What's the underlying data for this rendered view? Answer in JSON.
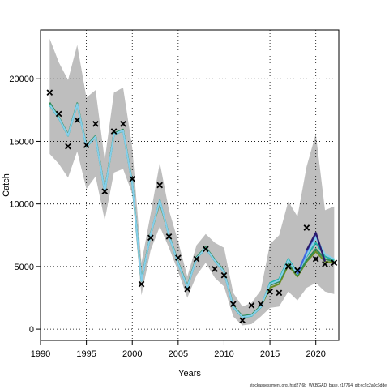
{
  "footer_text": "stockassessment.org, hsd27.6b_WKBGAD_base, r17764, git:ec2c2a0c6dde",
  "chart_data": {
    "type": "line",
    "title": "",
    "xlabel": "Years",
    "ylabel": "Catch",
    "xlim": [
      1990,
      2022.5
    ],
    "ylim": [
      -900,
      23900
    ],
    "xticks": [
      1990,
      1995,
      2000,
      2005,
      2010,
      2015,
      2020
    ],
    "yticks": [
      0,
      5000,
      10000,
      15000,
      20000
    ],
    "grid": true,
    "ci_band": {
      "color": "#bebebe",
      "x": [
        1991,
        1992,
        1993,
        1994,
        1995,
        1996,
        1997,
        1998,
        1999,
        2000,
        2001,
        2002,
        2003,
        2004,
        2005,
        2006,
        2007,
        2008,
        2009,
        2010,
        2011,
        2012,
        2013,
        2014,
        2015,
        2016,
        2017,
        2018,
        2019,
        2020,
        2021,
        2022
      ],
      "upper": [
        23200,
        21300,
        19900,
        22700,
        18500,
        19100,
        13500,
        18900,
        19300,
        14500,
        5300,
        9200,
        13300,
        9500,
        7000,
        4200,
        6700,
        7600,
        6900,
        6500,
        2900,
        1800,
        2100,
        3100,
        6800,
        7500,
        10200,
        9000,
        13000,
        15600,
        9500,
        9800
      ],
      "lower": [
        14000,
        13200,
        12100,
        14200,
        11200,
        12200,
        8700,
        12500,
        12800,
        10800,
        2700,
        6300,
        8200,
        6500,
        4600,
        2500,
        4300,
        5300,
        4100,
        3400,
        1000,
        300,
        400,
        1000,
        1700,
        1800,
        3000,
        2300,
        3300,
        3700,
        3000,
        2800
      ]
    },
    "series": [
      {
        "color": "#6b8e23",
        "x": [
          1991,
          1992,
          1993,
          1994,
          1995,
          1996,
          1997,
          1998,
          1999,
          2000,
          2001,
          2002,
          2003,
          2004,
          2005,
          2006,
          2007,
          2008,
          2009,
          2010,
          2011,
          2012,
          2013,
          2014,
          2015,
          2016,
          2017,
          2018,
          2019,
          2020,
          2021,
          2022
        ],
        "values": [
          18000,
          16900,
          15500,
          18000,
          14600,
          15400,
          11000,
          15600,
          15900,
          11700,
          3900,
          7600,
          10100,
          7500,
          5300,
          3400,
          5700,
          6500,
          5500,
          4600,
          1800,
          1000,
          1100,
          1800,
          3300,
          3600,
          5100,
          4200,
          5400,
          6200,
          5400,
          5300
        ]
      },
      {
        "color": "#2e8b57",
        "x": [
          1991,
          1992,
          1993,
          1994,
          1995,
          1996,
          1997,
          1998,
          1999,
          2000,
          2001,
          2002,
          2003,
          2004,
          2005,
          2006,
          2007,
          2008,
          2009,
          2010,
          2011,
          2012,
          2013,
          2014,
          2015,
          2016,
          2017,
          2018,
          2019,
          2020,
          2021,
          2022
        ],
        "values": [
          18100,
          16950,
          15550,
          18050,
          14650,
          15450,
          11050,
          15650,
          15950,
          11750,
          3950,
          7650,
          10150,
          7550,
          5350,
          3450,
          5750,
          6550,
          5550,
          4650,
          1850,
          1050,
          1150,
          1850,
          3500,
          3800,
          5300,
          4300,
          5500,
          6400,
          5600,
          5400
        ]
      },
      {
        "color": "#20b2aa",
        "x": [
          1991,
          1992,
          1993,
          1994,
          1995,
          1996,
          1997,
          1998,
          1999,
          2000,
          2001,
          2002,
          2003,
          2004,
          2005,
          2006,
          2007,
          2008,
          2009,
          2010,
          2011,
          2012,
          2013,
          2014,
          2015,
          2016,
          2017,
          2018,
          2019,
          2020,
          2021,
          2022
        ],
        "values": [
          17900,
          16850,
          15450,
          17950,
          14550,
          15350,
          10950,
          15550,
          15850,
          11650,
          3850,
          7550,
          10300,
          7450,
          5250,
          3350,
          5650,
          6450,
          5450,
          4550,
          1750,
          950,
          1050,
          1750,
          3700,
          4000,
          5600,
          4500,
          5800,
          6900,
          5800,
          5500
        ]
      },
      {
        "color": "#87ceeb",
        "x": [
          1991,
          1992,
          1993,
          1994,
          1995,
          1996,
          1997,
          1998,
          1999,
          2000,
          2001,
          2002,
          2003,
          2004,
          2005,
          2006,
          2007,
          2008,
          2009,
          2010,
          2011,
          2012,
          2013,
          2014,
          2015,
          2016,
          2017,
          2018,
          2019,
          2020,
          2021,
          2022
        ],
        "values": [
          17950,
          16880,
          15480,
          17980,
          14580,
          15380,
          10980,
          15580,
          15880,
          11680,
          3880,
          7580,
          10250,
          7480,
          5280,
          3380,
          5680,
          6480,
          5480,
          4580,
          1780,
          980,
          1080,
          1780,
          3600,
          3900,
          5500,
          4400,
          5900,
          7300,
          6000,
          5600
        ]
      },
      {
        "color": "#4169e1",
        "x": [
          2018,
          2019,
          2020
        ],
        "values": [
          4400,
          6200,
          7600
        ]
      },
      {
        "color": "#2a1b6e",
        "x": [
          2019,
          2020,
          2021
        ],
        "values": [
          6300,
          7700,
          5400
        ]
      }
    ],
    "observed": {
      "marker": "x",
      "x": [
        1991,
        1992,
        1993,
        1994,
        1995,
        1996,
        1997,
        1998,
        1999,
        2000,
        2001,
        2002,
        2003,
        2004,
        2005,
        2006,
        2007,
        2008,
        2009,
        2010,
        2011,
        2012,
        2013,
        2014,
        2015,
        2016,
        2017,
        2018,
        2019,
        2020,
        2021,
        2022
      ],
      "values": [
        18900,
        17200,
        14600,
        16700,
        14700,
        16400,
        11000,
        15800,
        16400,
        12000,
        3600,
        7300,
        11500,
        7400,
        5700,
        3200,
        5600,
        6400,
        4800,
        4300,
        2000,
        700,
        1900,
        2000,
        3000,
        2900,
        5000,
        4700,
        8100,
        5600,
        5200,
        5300
      ]
    }
  }
}
